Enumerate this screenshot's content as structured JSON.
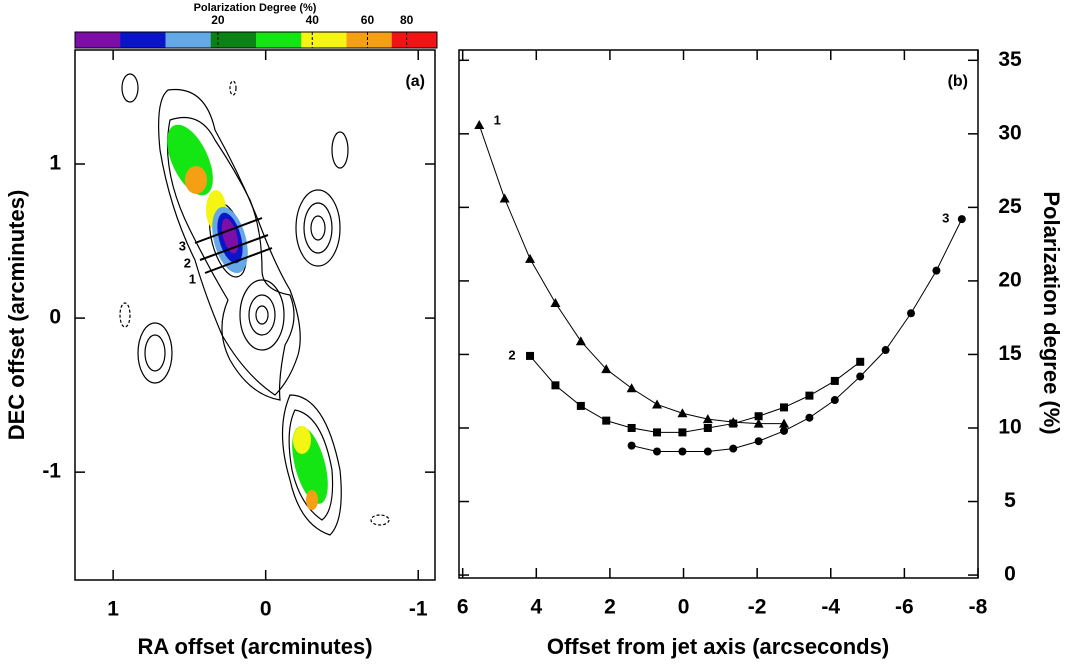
{
  "chart_data": [
    {
      "type": "image",
      "panel_label": "(a)",
      "xlabel": "RA offset (arcminutes)",
      "ylabel": "DEC offset (arcminutes)",
      "xlim": [
        1.25,
        -1.11
      ],
      "ylim": [
        -1.7,
        1.74
      ],
      "xticks": [
        1,
        0,
        -1
      ],
      "yticks": [
        -1,
        0,
        1
      ],
      "cut_labels": [
        "1",
        "2",
        "3"
      ],
      "colorbar": {
        "title": "Polarization Degree (%)",
        "log": true,
        "lim": [
          7,
          100
        ],
        "ticks": [
          20,
          40,
          60,
          80
        ],
        "colors": [
          "#7d0fa8",
          "#0a14c8",
          "#64a8e6",
          "#0a8214",
          "#14e614",
          "#f5f514",
          "#f5a014",
          "#f01414"
        ]
      }
    },
    {
      "type": "line",
      "panel_label": "(b)",
      "xlabel": "Offset from jet axis (arcseconds)",
      "ylabel": "Polarization degree (%)",
      "xlim": [
        6.1,
        -8.0
      ],
      "ylim": [
        -0.2,
        35.7
      ],
      "xticks": [
        6,
        4,
        2,
        0,
        -2,
        -4,
        -6,
        -8
      ],
      "yticks": [
        0,
        5,
        10,
        15,
        20,
        25,
        30,
        35
      ],
      "series": [
        {
          "name": "1",
          "marker": "triangle",
          "color": "#000000",
          "x": [
            5.55,
            4.86,
            4.17,
            3.48,
            2.79,
            2.1,
            1.41,
            0.72,
            0.03,
            -0.66,
            -1.35,
            -2.04,
            -2.73
          ],
          "values": [
            30.6,
            25.6,
            21.5,
            18.5,
            15.9,
            14.0,
            12.7,
            11.6,
            11.0,
            10.6,
            10.4,
            10.3,
            10.3
          ]
        },
        {
          "name": "2",
          "marker": "square",
          "color": "#000000",
          "x": [
            4.17,
            3.48,
            2.79,
            2.1,
            1.41,
            0.72,
            0.03,
            -0.66,
            -1.35,
            -2.04,
            -2.73,
            -3.42,
            -4.11,
            -4.8
          ],
          "values": [
            14.9,
            12.9,
            11.5,
            10.5,
            10.0,
            9.7,
            9.7,
            10.0,
            10.3,
            10.8,
            11.4,
            12.2,
            13.2,
            14.5
          ]
        },
        {
          "name": "3",
          "marker": "circle",
          "color": "#000000",
          "x": [
            1.41,
            0.72,
            0.03,
            -0.66,
            -1.35,
            -2.04,
            -2.73,
            -3.42,
            -4.11,
            -4.8,
            -5.49,
            -6.18,
            -6.87,
            -7.56
          ],
          "values": [
            8.8,
            8.4,
            8.4,
            8.4,
            8.6,
            9.1,
            9.8,
            10.7,
            11.9,
            13.5,
            15.3,
            17.8,
            20.7,
            24.2
          ]
        }
      ]
    }
  ]
}
